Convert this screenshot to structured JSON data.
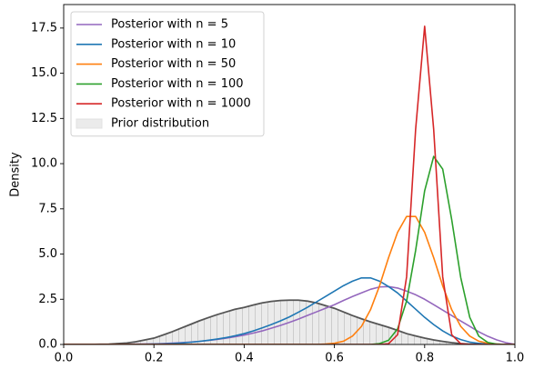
{
  "chart_data": {
    "type": "line",
    "y_label": "Density",
    "x": [
      0,
      0.02,
      0.04,
      0.06,
      0.08,
      0.1,
      0.12,
      0.14,
      0.16,
      0.18,
      0.2,
      0.22,
      0.24,
      0.26,
      0.28,
      0.3,
      0.32,
      0.34,
      0.36,
      0.38,
      0.4,
      0.42,
      0.44,
      0.46,
      0.48,
      0.5,
      0.52,
      0.54,
      0.56,
      0.58,
      0.6,
      0.62,
      0.64,
      0.66,
      0.68,
      0.7,
      0.72,
      0.74,
      0.76,
      0.78,
      0.8,
      0.82,
      0.84,
      0.86,
      0.88,
      0.9,
      0.92,
      0.94,
      0.96,
      0.98,
      1
    ],
    "series": [
      {
        "name": "Posterior with n = 5",
        "color": "#9467bd",
        "values": [
          0,
          0,
          0,
          0,
          0,
          0,
          0.005,
          0.01,
          0.015,
          0.02,
          0.03,
          0.05,
          0.07,
          0.1,
          0.13,
          0.17,
          0.22,
          0.28,
          0.35,
          0.43,
          0.52,
          0.63,
          0.75,
          0.9,
          1.05,
          1.22,
          1.4,
          1.6,
          1.8,
          2.0,
          2.2,
          2.43,
          2.65,
          2.85,
          3.05,
          3.18,
          3.2,
          3.12,
          2.95,
          2.75,
          2.5,
          2.2,
          1.9,
          1.6,
          1.3,
          1.0,
          0.7,
          0.45,
          0.25,
          0.1,
          0
        ]
      },
      {
        "name": "Posterior with n = 10",
        "color": "#1f77b4",
        "values": [
          0,
          0,
          0,
          0,
          0,
          0,
          0.005,
          0.005,
          0.01,
          0.01,
          0.02,
          0.03,
          0.05,
          0.08,
          0.12,
          0.17,
          0.23,
          0.3,
          0.38,
          0.48,
          0.6,
          0.75,
          0.92,
          1.1,
          1.3,
          1.52,
          1.78,
          2.05,
          2.35,
          2.65,
          2.95,
          3.25,
          3.5,
          3.68,
          3.68,
          3.5,
          3.2,
          2.85,
          2.4,
          1.95,
          1.5,
          1.1,
          0.75,
          0.47,
          0.27,
          0.13,
          0.06,
          0.02,
          0.01,
          0,
          0
        ]
      },
      {
        "name": "Posterior with n = 50",
        "color": "#ff7f0e",
        "values": [
          0,
          0,
          0,
          0,
          0,
          0,
          0,
          0,
          0,
          0,
          0,
          0,
          0,
          0,
          0,
          0,
          0,
          0,
          0,
          0,
          0,
          0,
          0,
          0,
          0,
          0,
          0,
          0,
          0,
          0.02,
          0.07,
          0.18,
          0.46,
          1.0,
          1.92,
          3.24,
          4.8,
          6.2,
          7.08,
          7.08,
          6.2,
          4.8,
          3.24,
          1.92,
          1.0,
          0.46,
          0.18,
          0.07,
          0.02,
          0,
          0
        ]
      },
      {
        "name": "Posterior with n = 100",
        "color": "#2ca02c",
        "values": [
          0,
          0,
          0,
          0,
          0,
          0,
          0,
          0,
          0,
          0,
          0,
          0,
          0,
          0,
          0,
          0,
          0,
          0,
          0,
          0,
          0,
          0,
          0,
          0,
          0,
          0,
          0,
          0,
          0,
          0,
          0,
          0,
          0,
          0,
          0,
          0.05,
          0.23,
          0.86,
          2.4,
          5.2,
          8.5,
          10.4,
          9.7,
          6.9,
          3.7,
          1.5,
          0.46,
          0.11,
          0.02,
          0,
          0
        ]
      },
      {
        "name": "Posterior with n = 1000",
        "color": "#d62728",
        "values": [
          0,
          0,
          0,
          0,
          0,
          0,
          0,
          0,
          0,
          0,
          0,
          0,
          0,
          0,
          0,
          0,
          0,
          0,
          0,
          0,
          0,
          0,
          0,
          0,
          0,
          0,
          0,
          0,
          0,
          0,
          0,
          0,
          0,
          0,
          0,
          0,
          0.04,
          0.54,
          3.74,
          11.9,
          17.6,
          11.9,
          3.74,
          0.54,
          0.04,
          0,
          0,
          0,
          0,
          0,
          0
        ]
      },
      {
        "name": "Prior distribution",
        "color": "#555555",
        "fill": "#ebebeb",
        "values": [
          0,
          0,
          0,
          0,
          0.01,
          0.02,
          0.05,
          0.08,
          0.15,
          0.25,
          0.35,
          0.52,
          0.7,
          0.9,
          1.1,
          1.3,
          1.48,
          1.65,
          1.8,
          1.95,
          2.05,
          2.18,
          2.3,
          2.38,
          2.43,
          2.45,
          2.45,
          2.4,
          2.3,
          2.15,
          2.0,
          1.8,
          1.6,
          1.42,
          1.25,
          1.1,
          0.95,
          0.78,
          0.6,
          0.47,
          0.35,
          0.25,
          0.17,
          0.1,
          0.05,
          0.02,
          0,
          0,
          0,
          0,
          0
        ]
      }
    ],
    "xlim": [
      0,
      1
    ],
    "ylim": [
      0,
      18.8
    ],
    "xticks": [
      {
        "value": 0,
        "label": "0.0"
      },
      0.2,
      0.4,
      0.6,
      0.8,
      {
        "value": 1,
        "label": "1.0"
      }
    ],
    "yticks": [
      {
        "value": 0,
        "label": "0.0"
      },
      2.5,
      {
        "value": 5,
        "label": "5.0"
      },
      7.5,
      {
        "value": 10,
        "label": "10.0"
      },
      12.5,
      {
        "value": 15,
        "label": "15.0"
      },
      17.5
    ],
    "legend": "upper left",
    "grid": false
  }
}
